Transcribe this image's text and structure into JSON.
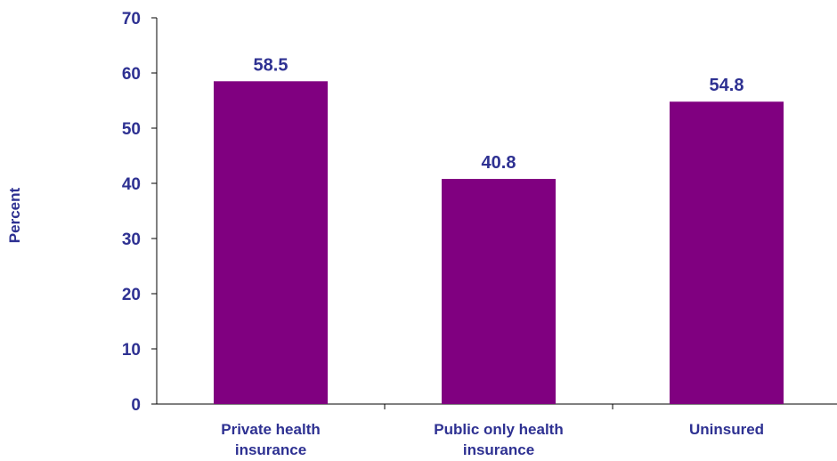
{
  "chart_data": {
    "type": "bar",
    "title": "",
    "xlabel": "",
    "ylabel": "Percent",
    "categories": [
      [
        "Private health",
        "insurance"
      ],
      [
        "Public only health",
        "insurance"
      ],
      [
        "Uninsured"
      ]
    ],
    "values": [
      58.5,
      40.8,
      54.8
    ],
    "value_labels": [
      "58.5",
      "40.8",
      "54.8"
    ],
    "ylim": [
      0,
      70
    ],
    "yticks": [
      0,
      10,
      20,
      30,
      40,
      50,
      60,
      70
    ],
    "ytick_labels": [
      "0",
      "10",
      "20",
      "30",
      "40",
      "50",
      "60",
      "70"
    ],
    "grid": false,
    "legend": "none",
    "colors": {
      "bar": "#800080",
      "text": "#2e3192",
      "axis": "#000000"
    }
  }
}
